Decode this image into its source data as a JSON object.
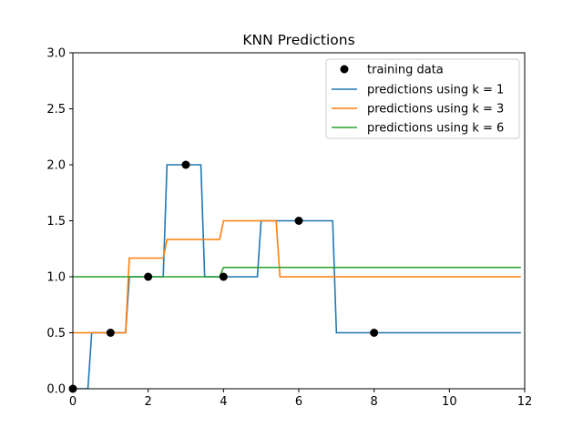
{
  "chart_data": {
    "type": "line",
    "title": "KNN Predictions",
    "xlabel": "",
    "ylabel": "",
    "xlim": [
      0,
      12
    ],
    "ylim": [
      0,
      3.0
    ],
    "xticks": [
      0,
      2,
      4,
      6,
      8,
      10,
      12
    ],
    "xtick_labels": [
      "0",
      "2",
      "4",
      "6",
      "8",
      "10",
      "12"
    ],
    "yticks": [
      0,
      0.5,
      1.0,
      1.5,
      2.0,
      2.5,
      3.0
    ],
    "ytick_labels": [
      "0.0",
      "0.5",
      "1.0",
      "1.5",
      "2.0",
      "2.5",
      "3.0"
    ],
    "grid": false,
    "legend_position": "top-right",
    "scatter": {
      "name": "training data",
      "color": "#000000",
      "x": [
        0,
        1,
        2,
        3,
        4,
        6,
        8
      ],
      "y": [
        0,
        0.5,
        1.0,
        2.0,
        1.0,
        1.5,
        0.5
      ]
    },
    "series": [
      {
        "name": "predictions using k = 1",
        "color": "#1f77b4",
        "x": [
          0,
          0.4,
          0.5,
          1.4,
          1.5,
          2.4,
          2.5,
          3.4,
          3.5,
          4.9,
          5.0,
          6.9,
          7.0,
          11.9
        ],
        "y": [
          0,
          0,
          0.5,
          0.5,
          1.0,
          1.0,
          2.0,
          2.0,
          1.0,
          1.0,
          1.5,
          1.5,
          0.5,
          0.5
        ]
      },
      {
        "name": "predictions using k = 3",
        "color": "#ff7f0e",
        "x": [
          0,
          1.4,
          1.5,
          2.4,
          2.5,
          3.9,
          4.0,
          5.4,
          5.5,
          11.9
        ],
        "y": [
          0.5,
          0.5,
          1.1667,
          1.1667,
          1.3333,
          1.3333,
          1.5,
          1.5,
          1.0,
          1.0
        ]
      },
      {
        "name": "predictions using k = 6",
        "color": "#2ca02c",
        "x": [
          0,
          3.9,
          4.0,
          11.9
        ],
        "y": [
          1.0,
          1.0,
          1.0833,
          1.0833
        ]
      }
    ]
  }
}
